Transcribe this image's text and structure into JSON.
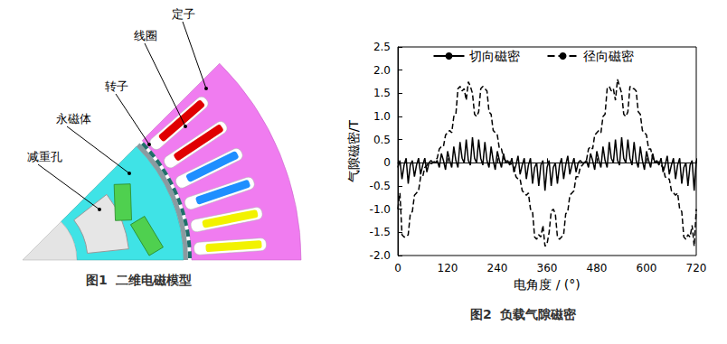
{
  "figure1": {
    "caption": "图1  二维电磁模型",
    "labels": [
      "定子",
      "线圈",
      "转子",
      "永磁体",
      "减重孔"
    ]
  },
  "chart_data": {
    "type": "line",
    "caption": "图2  负载气隙磁密",
    "xlabel": "电角度 / (°)",
    "ylabel": "气隙磁密/T",
    "xlim": [
      0,
      720
    ],
    "xticks": [
      0,
      120,
      240,
      360,
      480,
      600,
      720
    ],
    "ylim": [
      -2,
      2.5
    ],
    "yticks": [
      {
        "value": -2,
        "label": "-2.0"
      },
      -1.5,
      {
        "value": -1,
        "label": "-1.0"
      },
      -0.5,
      0,
      0.5,
      {
        "value": 1,
        "label": "1.0"
      },
      1.5,
      {
        "value": 2,
        "label": "2.0"
      },
      2.5
    ],
    "grid": false,
    "legend": "top",
    "x": [
      0,
      5,
      10,
      15,
      20,
      25,
      30,
      35,
      40,
      45,
      50,
      55,
      60,
      65,
      70,
      75,
      80,
      85,
      90,
      95,
      100,
      105,
      110,
      115,
      120,
      125,
      130,
      135,
      140,
      145,
      150,
      155,
      160,
      165,
      170,
      175,
      180,
      185,
      190,
      195,
      200,
      205,
      210,
      215,
      220,
      225,
      230,
      235,
      240,
      245,
      250,
      255,
      260,
      265,
      270,
      275,
      280,
      285,
      290,
      295,
      300,
      305,
      310,
      315,
      320,
      325,
      330,
      335,
      340,
      345,
      350,
      355,
      360,
      365,
      370,
      375,
      380,
      385,
      390,
      395,
      400,
      405,
      410,
      415,
      420,
      425,
      430,
      435,
      440,
      445,
      450,
      455,
      460,
      465,
      470,
      475,
      480,
      485,
      490,
      495,
      500,
      505,
      510,
      515,
      520,
      525,
      530,
      535,
      540,
      545,
      550,
      555,
      560,
      565,
      570,
      575,
      580,
      585,
      590,
      595,
      600,
      605,
      610,
      615,
      620,
      625,
      630,
      635,
      640,
      645,
      650,
      655,
      660,
      665,
      670,
      675,
      680,
      685,
      690,
      695,
      700,
      705,
      710,
      715,
      720
    ],
    "series": [
      {
        "name": "切向磁密",
        "color": "#000000",
        "line_style": "solid",
        "values": [
          -0.1,
          0.05,
          -0.35,
          -0.05,
          0.1,
          -0.45,
          -0.05,
          0.05,
          -0.3,
          -0.05,
          0.1,
          -0.25,
          -0.05,
          0.1,
          -0.2,
          0,
          0.05,
          0,
          0,
          0.05,
          -0.1,
          0.2,
          0.05,
          -0.15,
          0.25,
          0.05,
          -0.1,
          0.35,
          0.05,
          -0.1,
          0.45,
          0.1,
          0,
          0.5,
          0.05,
          -0.05,
          0.55,
          0.1,
          0,
          0.5,
          0.1,
          -0.05,
          0.45,
          0.05,
          -0.1,
          0.35,
          0.05,
          -0.15,
          0.25,
          0.05,
          -0.1,
          0.2,
          0,
          0.05,
          -0.05,
          0.1,
          -0.2,
          -0.05,
          0.15,
          -0.25,
          -0.05,
          0.1,
          -0.35,
          -0.05,
          0.1,
          -0.45,
          -0.1,
          0,
          -0.5,
          -0.05,
          0.05,
          -0.6,
          -0.1,
          0.05,
          -0.5,
          -0.1,
          0,
          -0.45,
          -0.05,
          0.1,
          -0.35,
          -0.05,
          0.15,
          -0.25,
          -0.05,
          0.1,
          -0.2,
          0,
          0.05,
          0,
          0,
          0.05,
          -0.1,
          0.2,
          0.05,
          -0.15,
          0.25,
          0.05,
          -0.1,
          0.35,
          0.05,
          -0.1,
          0.45,
          0.1,
          0,
          0.5,
          0.05,
          -0.05,
          0.55,
          0.1,
          0,
          0.5,
          0.1,
          -0.05,
          0.45,
          0.05,
          -0.1,
          0.35,
          0.05,
          -0.15,
          0.25,
          0.05,
          -0.1,
          0.2,
          0,
          0.05,
          -0.05,
          0.1,
          -0.2,
          -0.05,
          0.15,
          -0.25,
          -0.05,
          0.1,
          -0.35,
          -0.05,
          0.1,
          -0.45,
          -0.1,
          0,
          -0.5,
          -0.05,
          0.05,
          -0.6,
          0.05
        ]
      },
      {
        "name": "径向磁密",
        "color": "#000000",
        "line_style": "dashed",
        "values": [
          -1.0,
          -0.65,
          -1.55,
          -1.6,
          -1.6,
          -1.55,
          -1.1,
          -1.05,
          -0.7,
          -0.65,
          -0.6,
          -0.3,
          -0.3,
          -0.1,
          -0.05,
          0,
          -0.02,
          0,
          0.05,
          0.1,
          0.3,
          0.35,
          0.35,
          0.6,
          0.65,
          0.7,
          0.65,
          1.0,
          1.05,
          1.6,
          1.65,
          1.55,
          1.6,
          1.35,
          1.75,
          1.65,
          1.5,
          1.05,
          1.0,
          1.1,
          1.6,
          1.65,
          1.6,
          1.55,
          1.1,
          1.05,
          0.7,
          0.65,
          0.6,
          0.3,
          0.3,
          0.1,
          0.05,
          0,
          0.02,
          -0.05,
          -0.1,
          -0.3,
          -0.35,
          -0.35,
          -0.6,
          -0.65,
          -0.7,
          -0.65,
          -1.0,
          -1.05,
          -1.6,
          -1.65,
          -1.55,
          -1.6,
          -1.35,
          -1.8,
          -1.75,
          -1.5,
          -1.05,
          -1.0,
          -1.1,
          -1.6,
          -1.65,
          -1.6,
          -1.55,
          -1.1,
          -1.05,
          -0.7,
          -0.65,
          -0.6,
          -0.3,
          -0.3,
          -0.1,
          -0.05,
          0,
          0.05,
          0.3,
          0.35,
          0.3,
          0.6,
          0.65,
          0.7,
          0.65,
          1.0,
          1.05,
          1.6,
          1.65,
          1.55,
          1.6,
          1.35,
          1.8,
          1.65,
          1.5,
          1.05,
          1.0,
          1.1,
          1.65,
          1.6,
          1.6,
          1.55,
          1.1,
          1.05,
          0.7,
          0.65,
          0.6,
          0.3,
          0.3,
          0.1,
          0.05,
          0,
          0.02,
          -0.05,
          -0.1,
          -0.3,
          -0.35,
          -0.35,
          -0.6,
          -0.65,
          -0.7,
          -0.65,
          -1.0,
          -1.05,
          -1.6,
          -1.65,
          -1.55,
          -1.6,
          -1.35,
          -1.8,
          -1.0
        ]
      }
    ]
  }
}
